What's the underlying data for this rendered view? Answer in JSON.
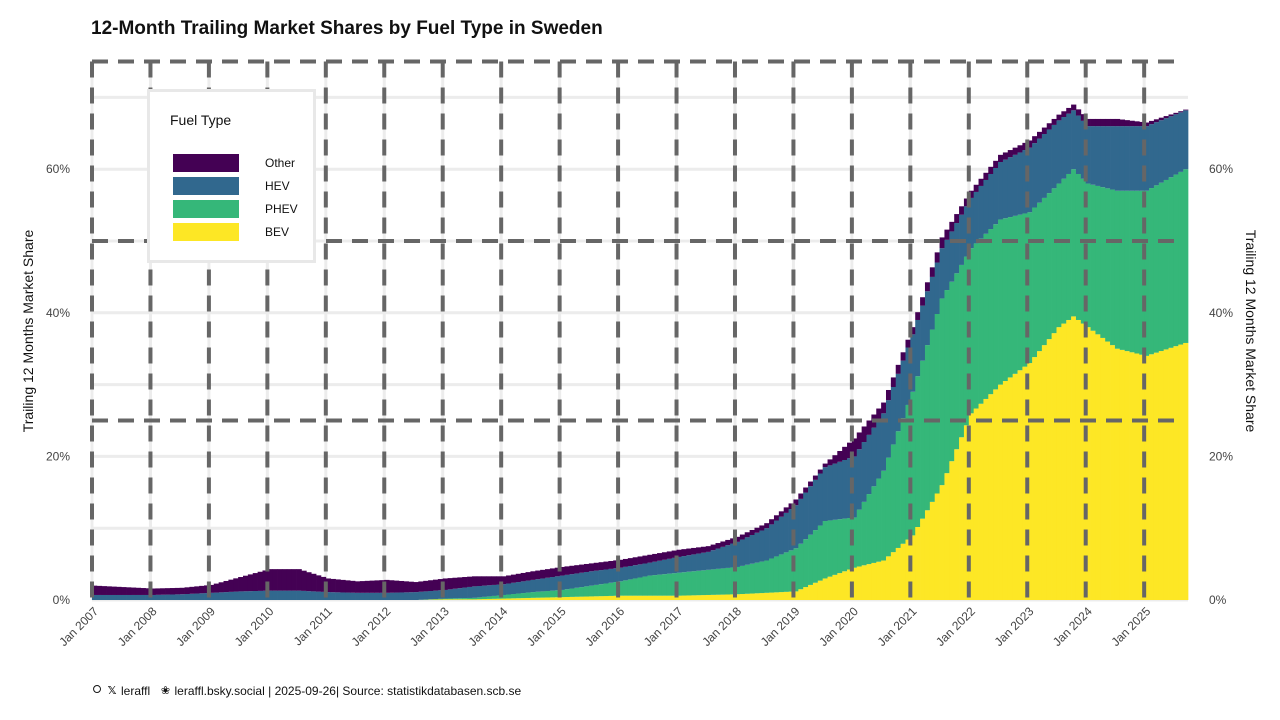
{
  "chart_data": {
    "type": "area",
    "stacked": true,
    "title": "12-Month Trailing Market Shares by Fuel Type in Sweden",
    "ylabel": "Trailing 12 Months Market Share",
    "ylabel_right": "Trailing 12 Months Market Share",
    "xlabel": "",
    "ylim": [
      0,
      0.75
    ],
    "yticks": [
      "0%",
      "20%",
      "40%",
      "60%"
    ],
    "ytick_values": [
      0,
      0.2,
      0.4,
      0.6
    ],
    "xticks": [
      "Jan 2007",
      "Jan 2008",
      "Jan 2009",
      "Jan 2010",
      "Jan 2011",
      "Jan 2012",
      "Jan 2013",
      "Jan 2014",
      "Jan 2015",
      "Jan 2016",
      "Jan 2017",
      "Jan 2018",
      "Jan 2019",
      "Jan 2020",
      "Jan 2021",
      "Jan 2022",
      "Jan 2023",
      "Jan 2024",
      "Jan 2025"
    ],
    "x_range": [
      "2007-01",
      "2025-09"
    ],
    "grid": true,
    "legend": {
      "title": "Fuel Type",
      "position": "top-left",
      "entries": [
        "Other",
        "HEV",
        "PHEV",
        "BEV"
      ]
    },
    "colors": {
      "BEV": "#fde725",
      "PHEV": "#35b779",
      "HEV": "#31688e",
      "Other": "#440154"
    },
    "series_note_order": "stacked bottom-to-top: BEV, PHEV, HEV, Other",
    "x": [
      "2007-01",
      "2007-07",
      "2008-01",
      "2008-07",
      "2009-01",
      "2009-07",
      "2010-01",
      "2010-07",
      "2011-01",
      "2011-07",
      "2012-01",
      "2012-07",
      "2013-01",
      "2013-07",
      "2014-01",
      "2014-07",
      "2015-01",
      "2015-07",
      "2016-01",
      "2016-07",
      "2017-01",
      "2017-07",
      "2018-01",
      "2018-07",
      "2019-01",
      "2019-07",
      "2020-01",
      "2020-07",
      "2021-01",
      "2021-07",
      "2022-01",
      "2022-07",
      "2023-01",
      "2023-07",
      "2023-10",
      "2024-01",
      "2024-07",
      "2025-01",
      "2025-09"
    ],
    "series": [
      {
        "name": "BEV",
        "values": [
          0.0,
          0.0,
          0.0,
          0.0,
          0.0,
          0.0,
          0.0,
          0.0,
          0.0,
          0.0,
          0.0,
          0.0,
          0.001,
          0.001,
          0.002,
          0.003,
          0.004,
          0.005,
          0.006,
          0.006,
          0.006,
          0.007,
          0.008,
          0.01,
          0.012,
          0.03,
          0.045,
          0.055,
          0.09,
          0.16,
          0.26,
          0.3,
          0.33,
          0.38,
          0.395,
          0.38,
          0.35,
          0.34,
          0.358
        ]
      },
      {
        "name": "PHEV",
        "values": [
          0.0,
          0.0,
          0.0,
          0.0,
          0.0,
          0.0,
          0.0,
          0.0,
          0.0,
          0.0,
          0.0,
          0.0,
          0.001,
          0.002,
          0.005,
          0.008,
          0.01,
          0.015,
          0.02,
          0.028,
          0.032,
          0.035,
          0.038,
          0.045,
          0.06,
          0.08,
          0.07,
          0.125,
          0.2,
          0.26,
          0.23,
          0.23,
          0.21,
          0.2,
          0.205,
          0.2,
          0.22,
          0.23,
          0.242
        ]
      },
      {
        "name": "HEV",
        "values": [
          0.007,
          0.007,
          0.007,
          0.008,
          0.01,
          0.012,
          0.013,
          0.013,
          0.011,
          0.01,
          0.01,
          0.011,
          0.012,
          0.016,
          0.015,
          0.017,
          0.02,
          0.02,
          0.019,
          0.018,
          0.022,
          0.025,
          0.035,
          0.045,
          0.06,
          0.075,
          0.085,
          0.08,
          0.08,
          0.07,
          0.07,
          0.08,
          0.09,
          0.088,
          0.082,
          0.08,
          0.09,
          0.09,
          0.082
        ]
      },
      {
        "name": "Other",
        "values": [
          0.013,
          0.011,
          0.009,
          0.009,
          0.011,
          0.02,
          0.03,
          0.03,
          0.019,
          0.016,
          0.018,
          0.014,
          0.016,
          0.014,
          0.011,
          0.012,
          0.012,
          0.011,
          0.011,
          0.011,
          0.01,
          0.008,
          0.007,
          0.007,
          0.008,
          0.005,
          0.025,
          0.015,
          0.01,
          0.015,
          0.01,
          0.01,
          0.01,
          0.008,
          0.008,
          0.01,
          0.01,
          0.005,
          0.001
        ]
      }
    ]
  },
  "caption": {
    "handle_x": "leraffl",
    "handle_bsky": "leraffl.bsky.social",
    "date": "2025-09-26",
    "source": "Source: statistikdatabasen.scb.se",
    "icons": [
      "threads-icon",
      "x-icon",
      "butterfly-icon"
    ]
  }
}
